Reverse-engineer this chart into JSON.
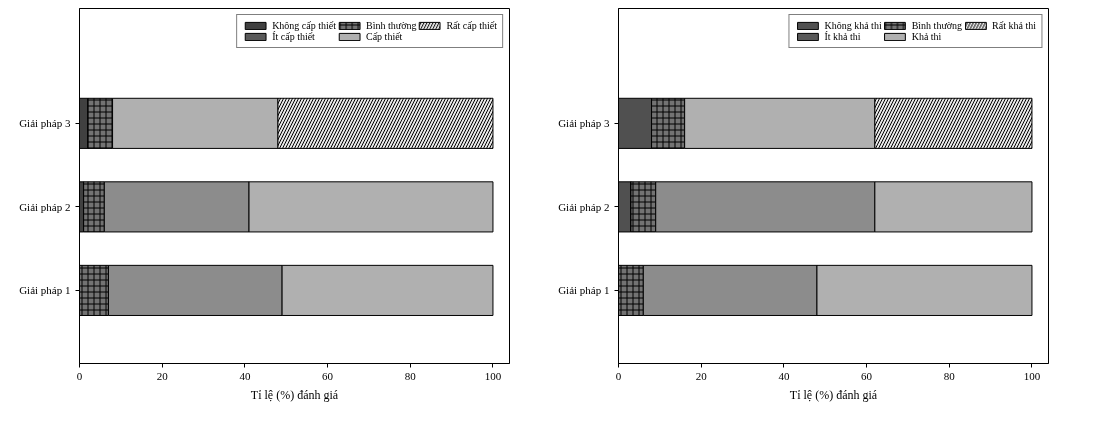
{
  "chart_data": [
    {
      "type": "bar",
      "orientation": "horizontal",
      "stacked": true,
      "categories": [
        "Giải pháp 3",
        "Giải pháp 2",
        "Giải pháp 1"
      ],
      "xlabel": "Tỉ lệ (%) đánh giá",
      "xlim": [
        0,
        104
      ],
      "xticks": [
        0,
        20,
        40,
        60,
        80,
        100
      ],
      "legend": "top right",
      "grid": false,
      "series": [
        {
          "name": "Không cấp thiết",
          "color": "#404040",
          "values": [
            2,
            1,
            0
          ],
          "colors": [
            "#404040",
            "#404040",
            "#404040"
          ]
        },
        {
          "name": "Ít cấp thiết",
          "color": "#595959",
          "values": [
            0,
            0,
            0
          ],
          "colors": [
            "#595959",
            "#595959",
            "#595959"
          ]
        },
        {
          "name": "Bình thường",
          "color": "#737373",
          "values": [
            6,
            5,
            7
          ],
          "colors": [
            "#737373",
            "#737373",
            "#737373"
          ]
        },
        {
          "name": "Cấp thiết",
          "color": "#a0a0a0",
          "values": [
            40,
            35,
            42
          ],
          "colors": [
            "#b0b0b0",
            "#8c8c8c",
            "#8c8c8c"
          ]
        },
        {
          "name": "Rất cấp thiết",
          "color": "#e8e8e8",
          "values": [
            52,
            59,
            51
          ],
          "colors": [
            "#e8e8e8",
            "#b0b0b0",
            "#b0b0b0"
          ]
        }
      ]
    },
    {
      "type": "bar",
      "orientation": "horizontal",
      "stacked": true,
      "categories": [
        "Giải pháp 3",
        "Giải pháp 2",
        "Giải pháp 1"
      ],
      "xlabel": "Tỉ lệ (%) đánh giá",
      "xlim": [
        0,
        104
      ],
      "xticks": [
        0,
        20,
        40,
        60,
        80,
        100
      ],
      "legend": "top right",
      "grid": false,
      "series": [
        {
          "name": "Không khả thi",
          "color": "#404040",
          "values": [
            8,
            3,
            0
          ],
          "colors": [
            "#505050",
            "#505050",
            "#505050"
          ]
        },
        {
          "name": "Ít khả thi",
          "color": "#595959",
          "values": [
            0,
            0,
            0
          ],
          "colors": [
            "#595959",
            "#595959",
            "#595959"
          ]
        },
        {
          "name": "Bình thường",
          "color": "#737373",
          "values": [
            8,
            6,
            6
          ],
          "colors": [
            "#737373",
            "#737373",
            "#737373"
          ]
        },
        {
          "name": "Khả thi",
          "color": "#a0a0a0",
          "values": [
            46,
            53,
            42
          ],
          "colors": [
            "#b0b0b0",
            "#8c8c8c",
            "#8c8c8c"
          ]
        },
        {
          "name": "Rất khả thi",
          "color": "#e8e8e8",
          "values": [
            38,
            38,
            52
          ],
          "colors": [
            "#e8e8e8",
            "#b0b0b0",
            "#b0b0b0"
          ]
        }
      ]
    }
  ]
}
